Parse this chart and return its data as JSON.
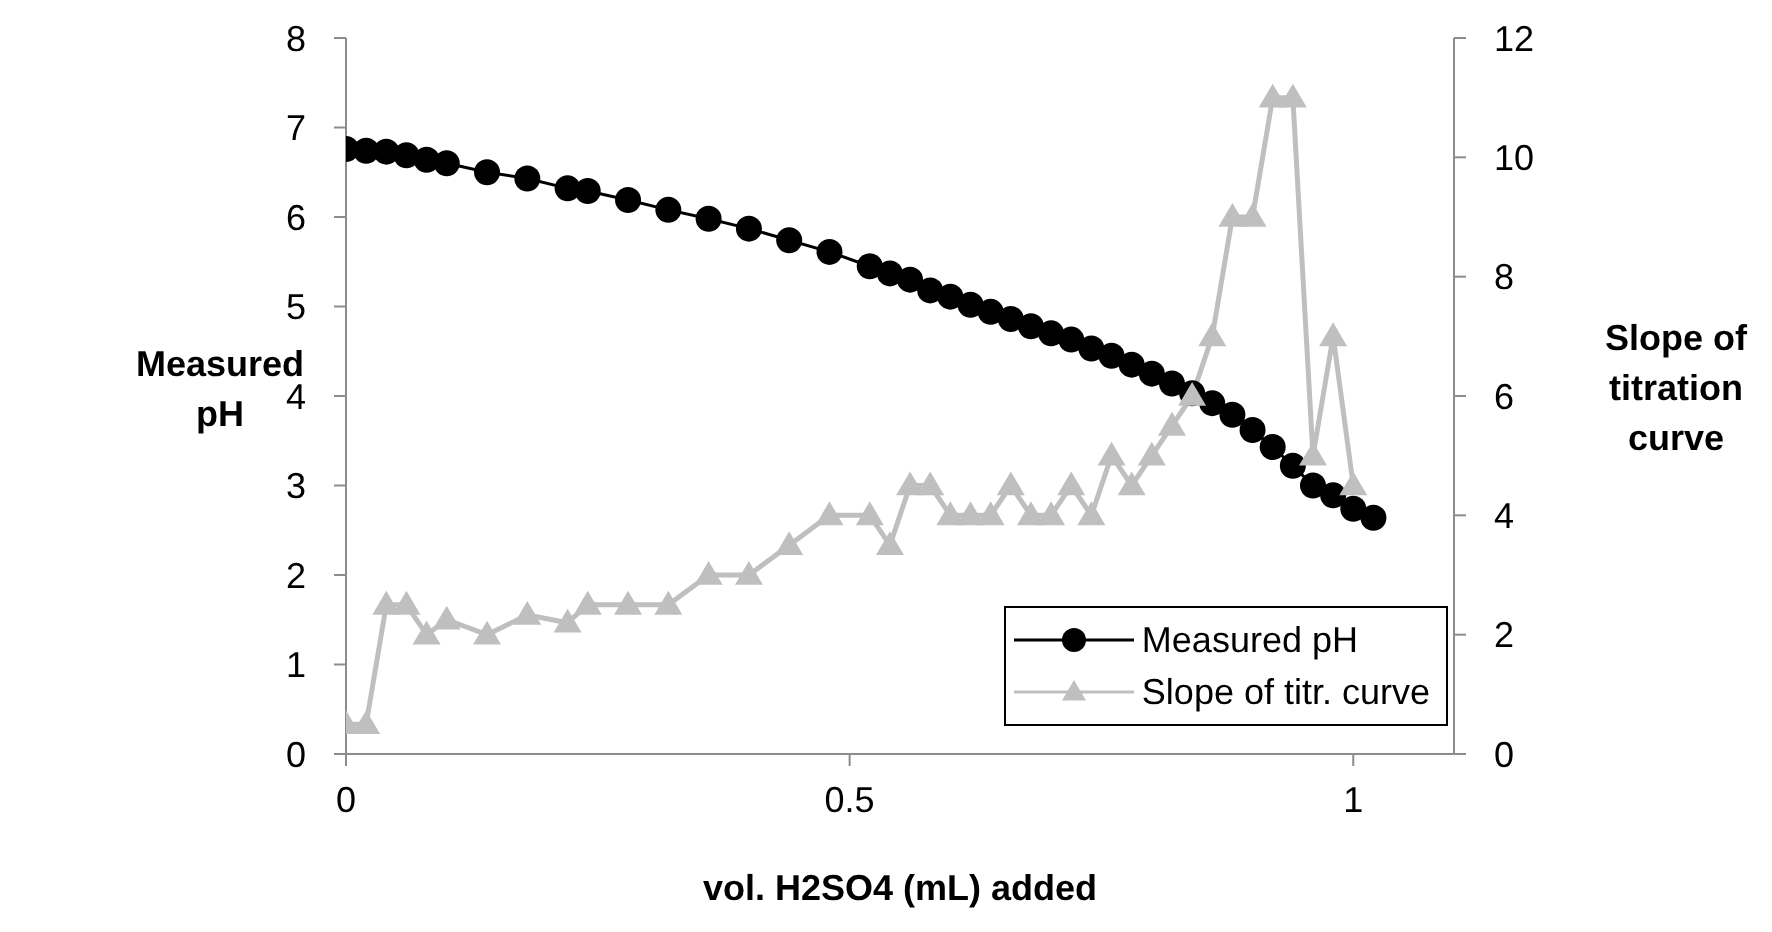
{
  "chart_data": {
    "type": "line",
    "xlabel": "vol. H2SO4 (mL) added",
    "ylabel": "Measured pH",
    "y2label": "Slope of titration curve",
    "xlim": [
      0,
      1.1
    ],
    "xticks": [
      0,
      0.5,
      1
    ],
    "ylim": [
      0,
      8
    ],
    "yticks": [
      0,
      1,
      2,
      3,
      4,
      5,
      6,
      7,
      8
    ],
    "y2lim": [
      0,
      12
    ],
    "y2ticks": [
      0,
      2,
      4,
      6,
      8,
      10,
      12
    ],
    "grid": false,
    "legend": "bottom right",
    "line_style": "solid",
    "series": [
      {
        "name": "Measured pH",
        "color": "#000000",
        "marker": "circle",
        "x": [
          0,
          0.02,
          0.04,
          0.06,
          0.08,
          0.1,
          0.14,
          0.18,
          0.22,
          0.24,
          0.28,
          0.32,
          0.36,
          0.4,
          0.44,
          0.48,
          0.52,
          0.54,
          0.56,
          0.58,
          0.6,
          0.62,
          0.64,
          0.66,
          0.68,
          0.7,
          0.72,
          0.74,
          0.76,
          0.78,
          0.8,
          0.82,
          0.84,
          0.86,
          0.88,
          0.9,
          0.92,
          0.94,
          0.96,
          0.98,
          1,
          1.02
        ],
        "values": [
          6.76,
          6.74,
          6.73,
          6.69,
          6.64,
          6.6,
          6.5,
          6.43,
          6.32,
          6.29,
          6.19,
          6.08,
          5.98,
          5.87,
          5.74,
          5.61,
          5.45,
          5.37,
          5.3,
          5.18,
          5.11,
          5.02,
          4.94,
          4.86,
          4.78,
          4.7,
          4.63,
          4.53,
          4.45,
          4.35,
          4.25,
          4.14,
          4.03,
          3.92,
          3.79,
          3.62,
          3.43,
          3.22,
          3.0,
          2.89,
          2.74,
          2.64
        ]
      },
      {
        "name": "Slope of titr. curve",
        "color": "#bfbfbf",
        "marker": "triangle",
        "axis": "y2",
        "x": [
          0,
          0.02,
          0.04,
          0.06,
          0.08,
          0.1,
          0.14,
          0.18,
          0.22,
          0.24,
          0.28,
          0.32,
          0.36,
          0.4,
          0.44,
          0.48,
          0.52,
          0.54,
          0.56,
          0.58,
          0.6,
          0.62,
          0.64,
          0.66,
          0.68,
          0.7,
          0.72,
          0.74,
          0.76,
          0.78,
          0.8,
          0.82,
          0.84,
          0.86,
          0.88,
          0.9,
          0.92,
          0.94,
          0.96,
          0.98,
          1
        ],
        "values": [
          0.5,
          0.5,
          2.5,
          2.5,
          2.0,
          2.25,
          2.0,
          2.33,
          2.2,
          2.5,
          2.5,
          2.5,
          3.0,
          3.0,
          3.5,
          4.0,
          4.0,
          3.5,
          4.5,
          4.5,
          4.0,
          4.0,
          4.0,
          4.5,
          4.0,
          4.0,
          4.5,
          4.0,
          5.0,
          4.5,
          5.0,
          5.5,
          6.0,
          7.0,
          9.0,
          9.0,
          11.0,
          11.0,
          5.0,
          7.0,
          4.5
        ]
      }
    ]
  }
}
